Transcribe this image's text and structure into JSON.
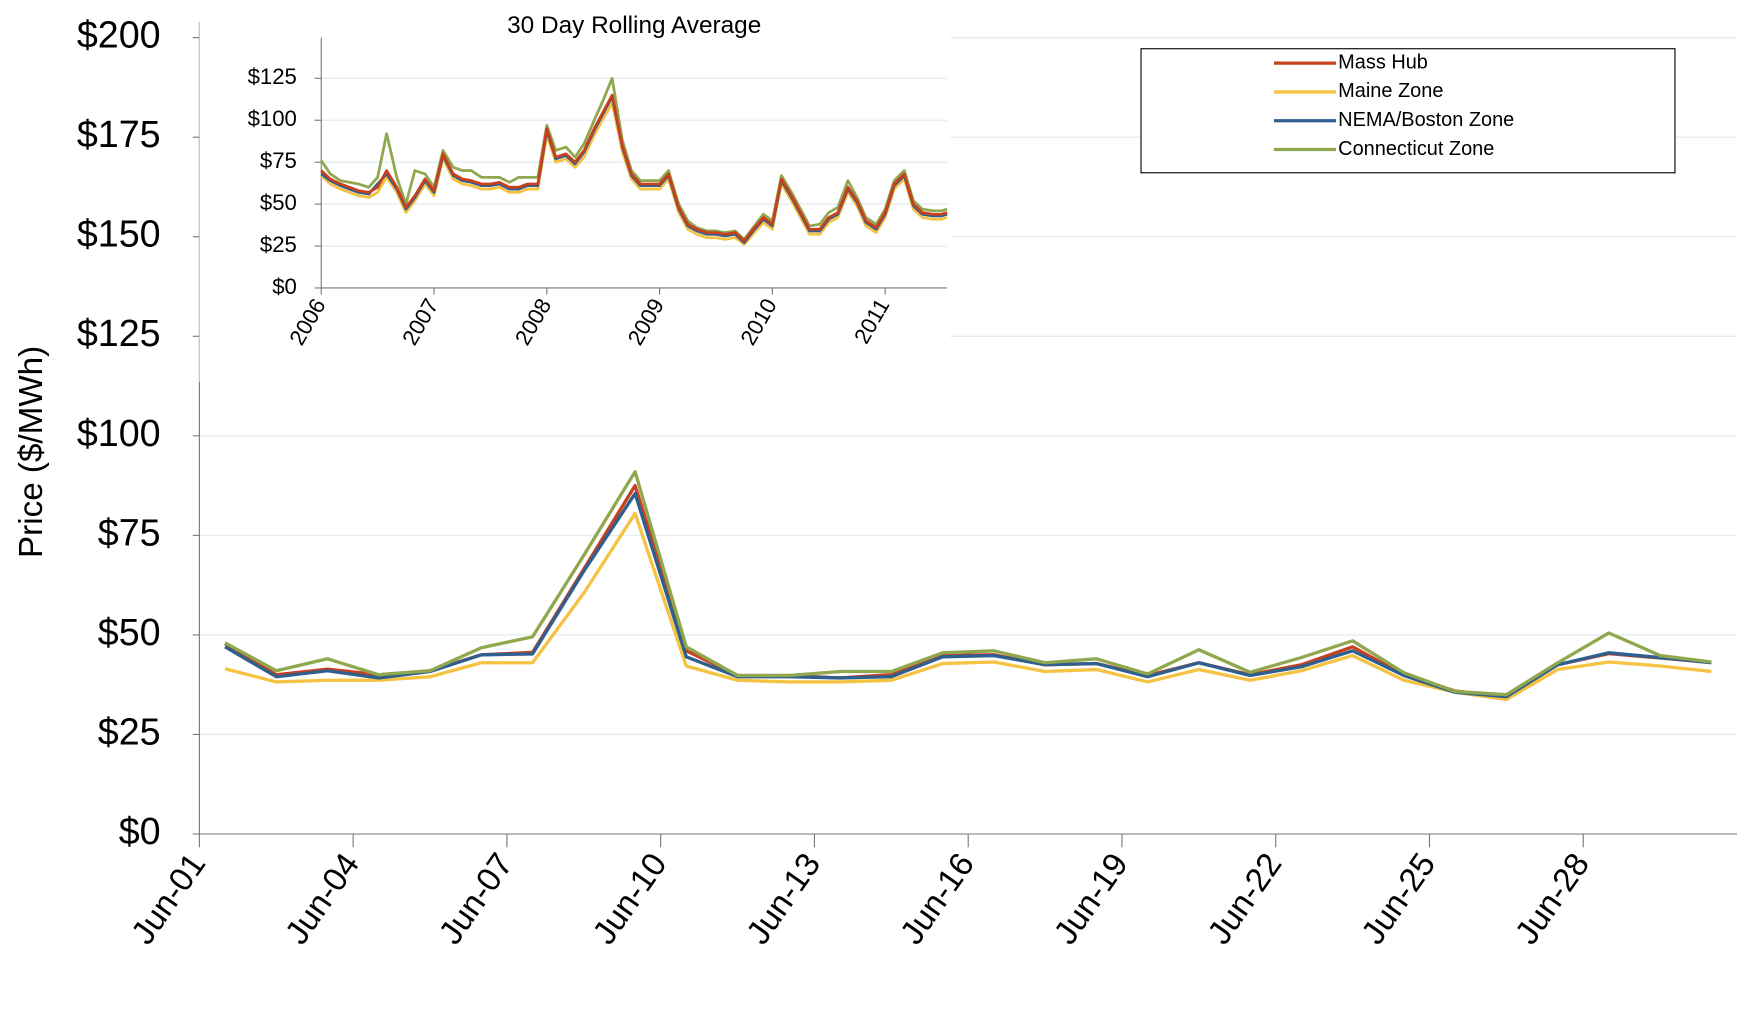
{
  "chart_data": [
    {
      "type": "line",
      "y_label": "Price ($/MWh)",
      "categories": [
        "Jun-01",
        null,
        null,
        "Jun-04",
        null,
        null,
        "Jun-07",
        null,
        null,
        "Jun-10",
        null,
        null,
        "Jun-13",
        null,
        null,
        "Jun-16",
        null,
        null,
        "Jun-19",
        null,
        null,
        "Jun-22",
        null,
        null,
        "Jun-25",
        null,
        null,
        "Jun-28",
        null,
        null
      ],
      "series": [
        {
          "name": "Mass Hub",
          "color": "#c8401e",
          "values": [
            47.8,
            40,
            41.4,
            40,
            41,
            45,
            45.6,
            66.5,
            87.5,
            46,
            39.8,
            39.8,
            39.2,
            40,
            44.8,
            45,
            42.5,
            42.8,
            39.8,
            43,
            40,
            42.5,
            47,
            40,
            35.9,
            34.5,
            42.5,
            45.3,
            44.2,
            43.1
          ]
        },
        {
          "name": "Maine Zone",
          "color": "#f5c242",
          "values": [
            41.5,
            38.2,
            38.6,
            38.6,
            39.5,
            43,
            43,
            60.5,
            80.5,
            42.2,
            38.6,
            38.2,
            38.2,
            38.6,
            42.8,
            43.2,
            40.8,
            41.3,
            38.2,
            41.3,
            38.6,
            41,
            44.8,
            38.6,
            35.6,
            33.8,
            41.3,
            43.2,
            42.2,
            40.8
          ]
        },
        {
          "name": "NEMA/Boston Zone",
          "color": "#2e5f8e",
          "values": [
            47,
            39.5,
            41,
            39.2,
            40.8,
            45,
            45.2,
            66,
            85.5,
            44.5,
            39.5,
            39.5,
            39.2,
            39.5,
            44.5,
            44.8,
            42.5,
            42.8,
            39.5,
            43,
            39.8,
            42,
            46,
            39.8,
            35.6,
            34.5,
            42.5,
            45.5,
            44.3,
            43
          ]
        },
        {
          "name": "Connecticut Zone",
          "color": "#8fa84e",
          "values": [
            48,
            41,
            44,
            40,
            41,
            46.8,
            49.5,
            70,
            91,
            47,
            39.8,
            39.8,
            40.8,
            40.8,
            45.5,
            46,
            43,
            44,
            40.2,
            46.3,
            40.6,
            44.3,
            48.5,
            40.5,
            35.8,
            35,
            43,
            50.5,
            44.8,
            43.2
          ]
        }
      ],
      "ylim": [
        0,
        200
      ],
      "yticks": [
        {
          "value": 0,
          "label": "$0"
        },
        {
          "value": 25,
          "label": "$25"
        },
        {
          "value": 50,
          "label": "$50"
        },
        {
          "value": 75,
          "label": "$75"
        },
        {
          "value": 100,
          "label": "$100"
        },
        {
          "value": 125,
          "label": "$125"
        },
        {
          "value": 150,
          "label": "$150"
        },
        {
          "value": 175,
          "label": "$175"
        },
        {
          "value": 200,
          "label": "$200"
        }
      ],
      "grid": true,
      "legend": "upper-right"
    },
    {
      "type": "line",
      "title": "30 Day Rolling Average",
      "x": [
        2006.0,
        2006.08,
        2006.17,
        2006.25,
        2006.33,
        2006.42,
        2006.5,
        2006.58,
        2006.67,
        2006.75,
        2006.83,
        2006.92,
        2007.0,
        2007.08,
        2007.17,
        2007.25,
        2007.33,
        2007.42,
        2007.5,
        2007.58,
        2007.67,
        2007.75,
        2007.83,
        2007.92,
        2008.0,
        2008.08,
        2008.17,
        2008.25,
        2008.33,
        2008.42,
        2008.5,
        2008.58,
        2008.67,
        2008.75,
        2008.83,
        2008.92,
        2009.0,
        2009.08,
        2009.17,
        2009.25,
        2009.33,
        2009.42,
        2009.5,
        2009.58,
        2009.67,
        2009.75,
        2009.83,
        2009.92,
        2010.0,
        2010.08,
        2010.17,
        2010.25,
        2010.33,
        2010.42,
        2010.5,
        2010.58,
        2010.67,
        2010.75,
        2010.83,
        2010.92,
        2011.0,
        2011.08,
        2011.17,
        2011.25,
        2011.33,
        2011.42,
        2011.5,
        2011.55
      ],
      "series": [
        {
          "color": "#8fa84e",
          "values": [
            76,
            68,
            64,
            63,
            62,
            60,
            66,
            92,
            66,
            50,
            70,
            68,
            60,
            82,
            72,
            70,
            70,
            66,
            66,
            66,
            63,
            66,
            66,
            66,
            97,
            82,
            84,
            78,
            86,
            100,
            112,
            125,
            88,
            70,
            64,
            64,
            64,
            70,
            50,
            40,
            36,
            34,
            34,
            33,
            34,
            29,
            36,
            44,
            40,
            67,
            57,
            47,
            37,
            38,
            45,
            48,
            64,
            54,
            42,
            38,
            47,
            64,
            70,
            52,
            47,
            46,
            46,
            47
          ]
        },
        {
          "color": "#f5c242",
          "values": [
            67,
            62,
            59,
            57,
            55,
            54,
            57,
            66,
            57,
            45,
            52,
            62,
            55,
            77,
            65,
            62,
            61,
            59,
            59,
            60,
            57,
            57,
            59,
            59,
            91,
            75,
            77,
            72,
            78,
            91,
            101,
            110,
            81,
            65,
            59,
            59,
            59,
            65,
            45,
            35,
            32,
            30,
            30,
            29,
            30,
            26,
            32,
            39,
            35,
            62,
            52,
            42,
            32,
            32,
            39,
            42,
            57,
            49,
            37,
            33,
            42,
            59,
            65,
            47,
            42,
            41,
            41,
            42
          ]
        },
        {
          "color": "#2e5f8e",
          "values": [
            68,
            64,
            61,
            59,
            57,
            56,
            62,
            68,
            59,
            47,
            54,
            64,
            57,
            79,
            67,
            64,
            63,
            61,
            61,
            62,
            59,
            59,
            61,
            61,
            94,
            77,
            79,
            74,
            81,
            94,
            104,
            114,
            84,
            67,
            61,
            61,
            61,
            67,
            47,
            37,
            34,
            32,
            32,
            31,
            32,
            27,
            34,
            41,
            37,
            64,
            54,
            44,
            34,
            34,
            41,
            44,
            59,
            51,
            39,
            35,
            44,
            61,
            67,
            49,
            44,
            43,
            43,
            44
          ]
        },
        {
          "color": "#c8401e",
          "values": [
            70,
            65,
            62,
            60,
            58,
            57,
            60,
            70,
            60,
            48,
            55,
            65,
            58,
            80,
            68,
            65,
            64,
            62,
            62,
            63,
            60,
            60,
            62,
            62,
            95,
            78,
            80,
            75,
            82,
            95,
            105,
            115,
            85,
            68,
            62,
            62,
            62,
            68,
            48,
            38,
            35,
            33,
            33,
            32,
            33,
            28,
            35,
            42,
            38,
            65,
            55,
            45,
            35,
            35,
            42,
            45,
            60,
            52,
            40,
            36,
            45,
            62,
            68,
            50,
            45,
            44,
            44,
            45
          ]
        }
      ],
      "xlim": [
        2006,
        2011.55
      ],
      "xticks": [
        2006,
        2007,
        2008,
        2009,
        2010,
        2011
      ],
      "ylim": [
        0,
        140
      ],
      "yticks": [
        {
          "value": 0,
          "label": "$0"
        },
        {
          "value": 25,
          "label": "$25"
        },
        {
          "value": 50,
          "label": "$50"
        },
        {
          "value": 75,
          "label": "$75"
        },
        {
          "value": 100,
          "label": "$100"
        },
        {
          "value": 125,
          "label": "$125"
        }
      ],
      "grid": true
    }
  ]
}
